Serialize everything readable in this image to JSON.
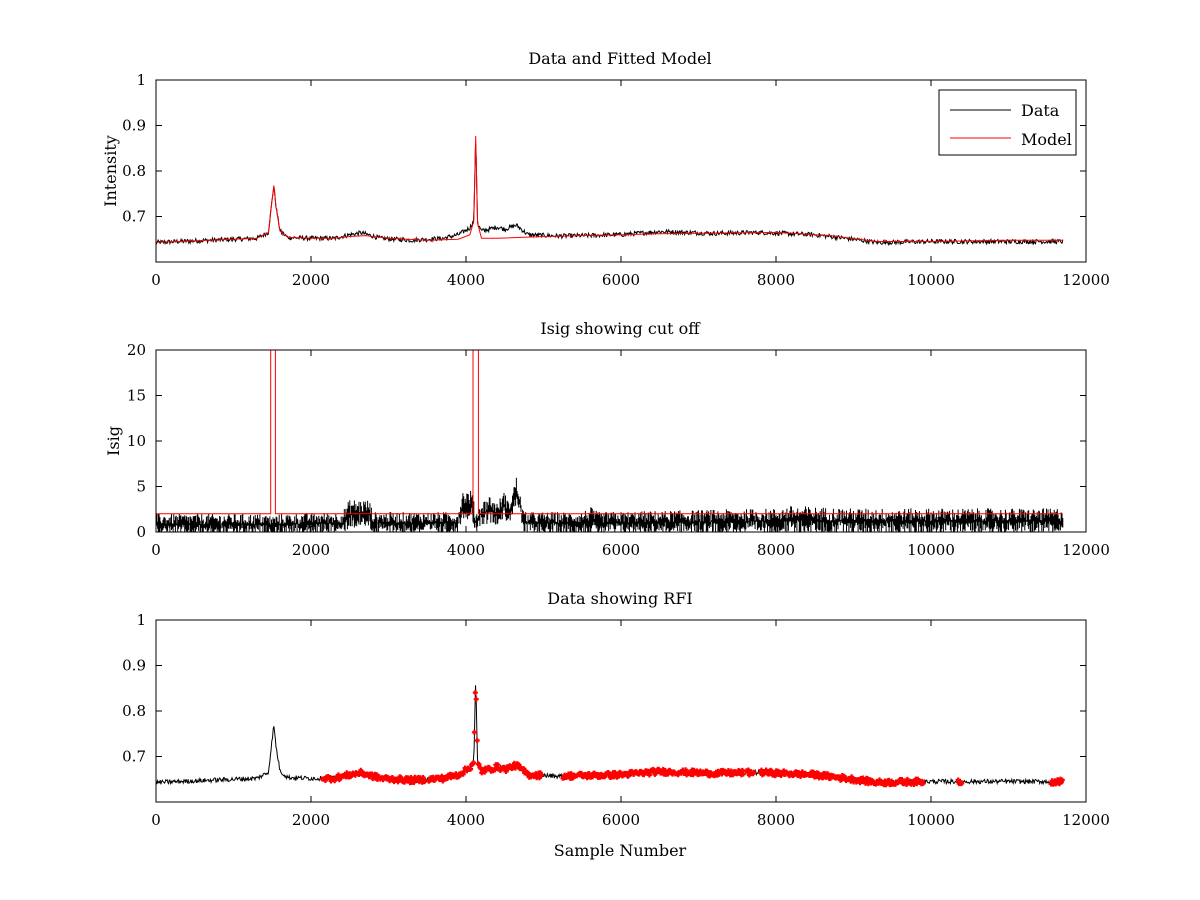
{
  "chart_data": [
    {
      "type": "line",
      "title": "Data and Fitted Model",
      "xlabel": "",
      "ylabel": "Intensity",
      "xlim": [
        0,
        12000
      ],
      "ylim": [
        0.6,
        1.0
      ],
      "xticks": [
        0,
        2000,
        4000,
        6000,
        8000,
        10000,
        12000
      ],
      "xtick_labels": [
        "0",
        "2000",
        "4000",
        "6000",
        "8000",
        "10000",
        "12000"
      ],
      "yticks": [
        0.7,
        0.8,
        0.9,
        1.0
      ],
      "ytick_labels": [
        "0.7",
        "0.8",
        "0.9",
        "1"
      ],
      "legend": {
        "placement": "top-right",
        "entries": [
          "Data",
          "Model"
        ]
      },
      "series": [
        {
          "name": "Data",
          "color": "#000000",
          "style": "noisy-line",
          "noise": 0.005,
          "x": [
            0,
            1300,
            1450,
            1500,
            1520,
            1550,
            1600,
            1700,
            2000,
            2300,
            2500,
            2650,
            2900,
            3300,
            3700,
            3900,
            4050,
            4100,
            4125,
            4150,
            4200,
            4300,
            4400,
            4500,
            4650,
            4800,
            5200,
            6000,
            6500,
            7200,
            7800,
            8500,
            9000,
            9300,
            10000,
            11000,
            11700
          ],
          "values": [
            0.643,
            0.652,
            0.665,
            0.74,
            0.768,
            0.72,
            0.668,
            0.654,
            0.652,
            0.652,
            0.66,
            0.664,
            0.652,
            0.648,
            0.652,
            0.66,
            0.675,
            0.69,
            0.877,
            0.685,
            0.668,
            0.672,
            0.677,
            0.672,
            0.681,
            0.66,
            0.657,
            0.66,
            0.667,
            0.663,
            0.665,
            0.66,
            0.65,
            0.643,
            0.645,
            0.645,
            0.645
          ]
        },
        {
          "name": "Model",
          "color": "#ff0000",
          "style": "line",
          "x": [
            0,
            1300,
            1450,
            1500,
            1520,
            1550,
            1600,
            1700,
            2000,
            2300,
            2500,
            2700,
            3000,
            3500,
            3900,
            4050,
            4100,
            4125,
            4150,
            4200,
            4400,
            5000,
            6000,
            6500,
            8000,
            8700,
            9300,
            10000,
            11000,
            11700
          ],
          "values": [
            0.643,
            0.652,
            0.665,
            0.74,
            0.768,
            0.72,
            0.668,
            0.654,
            0.652,
            0.652,
            0.656,
            0.658,
            0.652,
            0.648,
            0.65,
            0.66,
            0.69,
            0.877,
            0.685,
            0.652,
            0.652,
            0.656,
            0.66,
            0.662,
            0.665,
            0.658,
            0.645,
            0.645,
            0.648,
            0.648
          ]
        }
      ]
    },
    {
      "type": "line",
      "title": "Isig showing cut off",
      "xlabel": "",
      "ylabel": "Isig",
      "xlim": [
        0,
        12000
      ],
      "ylim": [
        0,
        20
      ],
      "xticks": [
        0,
        2000,
        4000,
        6000,
        8000,
        10000,
        12000
      ],
      "xtick_labels": [
        "0",
        "2000",
        "4000",
        "6000",
        "8000",
        "10000",
        "12000"
      ],
      "yticks": [
        0,
        5,
        10,
        15,
        20
      ],
      "ytick_labels": [
        "0",
        "5",
        "10",
        "15",
        "20"
      ],
      "cutoff": 2,
      "series": [
        {
          "name": "Isig",
          "color": "#000000",
          "style": "noisy-band",
          "x": [
            0,
            1400,
            1500,
            1600,
            2400,
            2500,
            2750,
            2800,
            3900,
            3950,
            4080,
            4120,
            4200,
            4300,
            4400,
            4500,
            4550,
            4650,
            4720,
            4750,
            5500,
            5600,
            5700,
            8000,
            8200,
            9000,
            11600,
            11700
          ],
          "values": [
            0.8,
            0.8,
            0.6,
            0.8,
            1.0,
            2.0,
            2.0,
            1.0,
            1.0,
            3.0,
            3.0,
            1.0,
            2.0,
            2.5,
            2.0,
            3.0,
            2.0,
            4.5,
            2.0,
            1.0,
            1.0,
            1.2,
            1.0,
            1.2,
            1.3,
            1.2,
            1.2,
            1.2
          ],
          "spread": [
            1.2,
            1.2,
            1.2,
            1.2,
            1.2,
            1.6,
            1.6,
            1.2,
            1.2,
            1.6,
            1.6,
            1.2,
            1.2,
            1.6,
            1.2,
            1.6,
            1.2,
            1.6,
            1.2,
            1.2,
            1.2,
            1.6,
            1.2,
            1.4,
            1.6,
            1.4,
            1.4,
            1.6
          ]
        },
        {
          "name": "Cutoff",
          "color": "#ff0000",
          "style": "line",
          "x": [
            0,
            1480,
            1480,
            1540,
            1540,
            4090,
            4090,
            4160,
            4160,
            11700
          ],
          "values": [
            2,
            2,
            20,
            20,
            2,
            2,
            20,
            20,
            2,
            2
          ]
        }
      ]
    },
    {
      "type": "line",
      "title": "Data showing RFI",
      "xlabel": "Sample Number",
      "ylabel": "",
      "xlim": [
        0,
        12000
      ],
      "ylim": [
        0.6,
        1.0
      ],
      "xticks": [
        0,
        2000,
        4000,
        6000,
        8000,
        10000,
        12000
      ],
      "xtick_labels": [
        "0",
        "2000",
        "4000",
        "6000",
        "8000",
        "10000",
        "12000"
      ],
      "yticks": [
        0.7,
        0.8,
        0.9,
        1.0
      ],
      "ytick_labels": [
        "0.7",
        "0.8",
        "0.9",
        "1"
      ],
      "series": [
        {
          "name": "Data",
          "color": "#000000",
          "style": "noisy-line",
          "noise": 0.005,
          "x": [
            0,
            1300,
            1450,
            1500,
            1520,
            1550,
            1600,
            1700,
            2000,
            2300,
            2500,
            2650,
            2900,
            3300,
            3700,
            3900,
            4050,
            4100,
            4125,
            4150,
            4200,
            4300,
            4400,
            4500,
            4650,
            4800,
            5200,
            6000,
            6500,
            7200,
            7800,
            8500,
            9000,
            9300,
            10000,
            11000,
            11700
          ],
          "values": [
            0.643,
            0.652,
            0.665,
            0.74,
            0.768,
            0.72,
            0.668,
            0.654,
            0.652,
            0.652,
            0.66,
            0.664,
            0.652,
            0.648,
            0.652,
            0.66,
            0.675,
            0.69,
            0.877,
            0.685,
            0.668,
            0.672,
            0.677,
            0.672,
            0.681,
            0.66,
            0.657,
            0.66,
            0.667,
            0.663,
            0.665,
            0.66,
            0.65,
            0.643,
            0.645,
            0.645,
            0.645
          ]
        },
        {
          "name": "RFI",
          "color": "#ff0000",
          "style": "markers",
          "ranges": [
            [
              2150,
              3480
            ],
            [
              3520,
              4980
            ],
            [
              5250,
              7580
            ],
            [
              7620,
              7720
            ],
            [
              7800,
              9900
            ],
            [
              10350,
              10400
            ],
            [
              11550,
              11700
            ]
          ]
        }
      ]
    }
  ]
}
